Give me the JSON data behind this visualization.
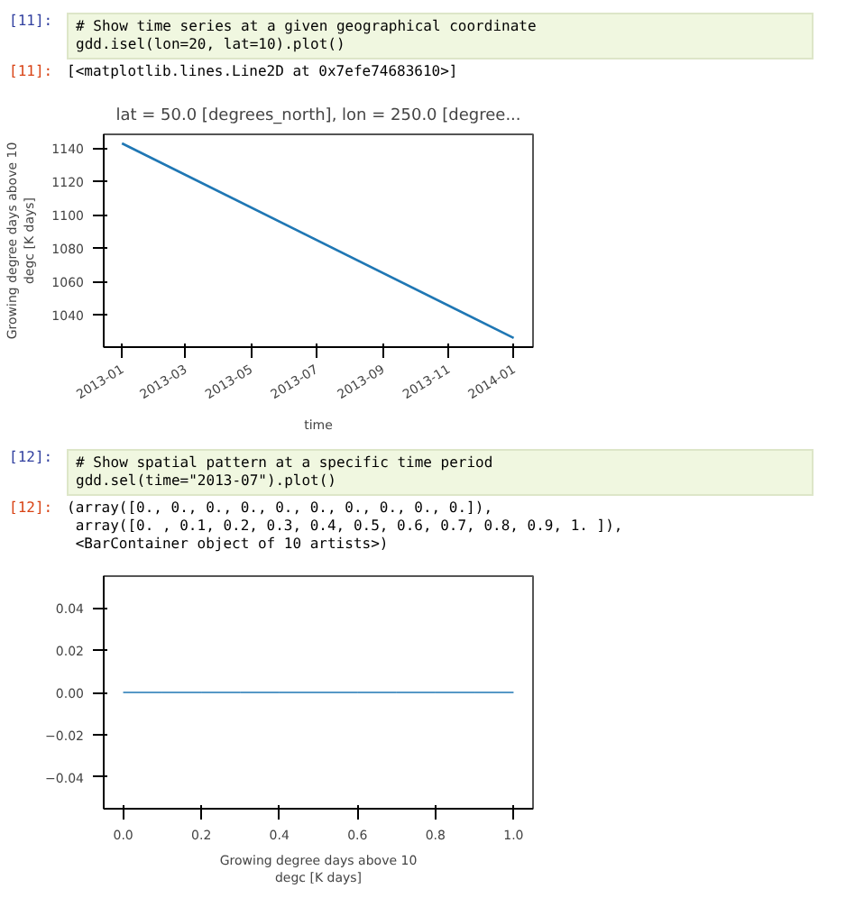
{
  "chart_data": [
    {
      "type": "line",
      "title": "lat = 50.0 [degrees_north], lon = 250.0 [degree...",
      "xlabel": "time",
      "ylabel": "Growing degree days above 10\ndegc [K days]",
      "x": [
        "2013-01-01",
        "2014-01-01"
      ],
      "series": [
        {
          "color": "#1f77b4",
          "values": [
            1143,
            1026
          ]
        }
      ],
      "xlim": [
        "2012-12-15",
        "2014-01-19"
      ],
      "ylim": [
        1020.5,
        1148.4
      ],
      "xticks": [
        {
          "value": "2013-01-01",
          "label": "2013-01"
        },
        {
          "value": "2013-03-01",
          "label": "2013-03"
        },
        {
          "value": "2013-05-01",
          "label": "2013-05"
        },
        {
          "value": "2013-07-01",
          "label": "2013-07"
        },
        {
          "value": "2013-09-01",
          "label": "2013-09"
        },
        {
          "value": "2013-11-01",
          "label": "2013-11"
        },
        {
          "value": "2014-01-01",
          "label": "2014-01"
        }
      ],
      "yticks": [
        1040,
        1060,
        1080,
        1100,
        1120,
        1140
      ],
      "grid": false,
      "annotations": [
        "[11]:",
        "# Show time series at a given geographical coordinate",
        "gdd.isel(lon=20, lat=10).plot()",
        "[11]:",
        "[<matplotlib.lines.Line2D at 0x7efe74683610>]"
      ]
    },
    {
      "type": "histogram",
      "xlabel": "Growing degree days above 10\ndegc [K days]",
      "bins": [
        0,
        0.1,
        0.2,
        0.3,
        0.4,
        0.5,
        0.6,
        0.7,
        0.8,
        0.9,
        1.0
      ],
      "values": [
        0,
        0,
        0,
        0,
        0,
        0,
        0,
        0,
        0,
        0
      ],
      "color": "#1f77b4",
      "xlim": [
        -0.05,
        1.05
      ],
      "ylim": [
        -0.055,
        0.055
      ],
      "xticks": [
        {
          "value": 0,
          "label": "0.0"
        },
        {
          "value": 0.2,
          "label": "0.2"
        },
        {
          "value": 0.4,
          "label": "0.4"
        },
        {
          "value": 0.6,
          "label": "0.6"
        },
        {
          "value": 0.8,
          "label": "0.8"
        },
        {
          "value": 1.0,
          "label": "1.0"
        }
      ],
      "yticks": [
        {
          "value": -0.04,
          "label": "−0.04"
        },
        {
          "value": -0.02,
          "label": "−0.02"
        },
        {
          "value": 0,
          "label": "0.00"
        },
        {
          "value": 0.02,
          "label": "0.02"
        },
        {
          "value": 0.04,
          "label": "0.04"
        }
      ],
      "grid": false,
      "annotations": [
        "[12]:",
        "# Show spatial pattern at a specific time period",
        "gdd.sel(time=\"2013-07\").plot()",
        "[12]:",
        "(array([0., 0., 0., 0., 0., 0., 0., 0., 0., 0.]),",
        " array([0. , 0.1, 0.2, 0.3, 0.4, 0.5, 0.6, 0.7, 0.8, 0.9, 1. ]),",
        " <BarContainer object of 10 artists>)"
      ]
    }
  ]
}
